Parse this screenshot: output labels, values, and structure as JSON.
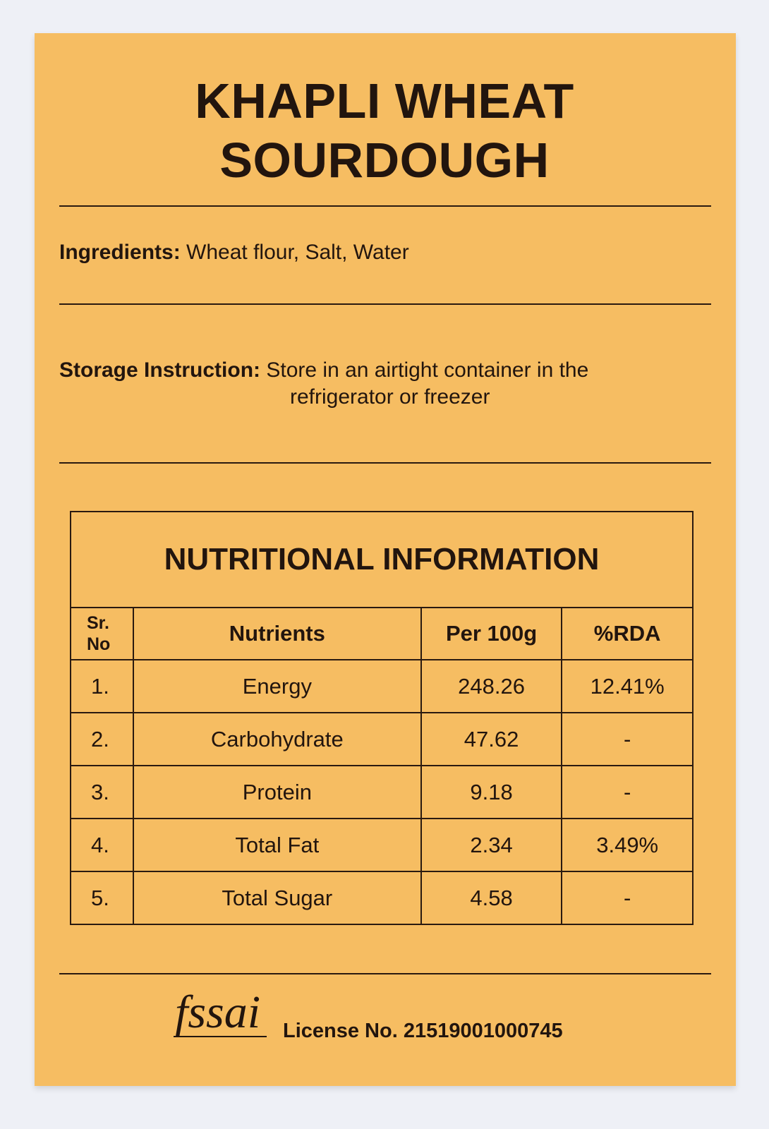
{
  "title": {
    "line1": "KHAPLI WHEAT",
    "line2": "SOURDOUGH"
  },
  "ingredients": {
    "label": "Ingredients:",
    "value": "Wheat flour, Salt, Water"
  },
  "storage": {
    "label": "Storage Instruction:",
    "line1": "Store in an airtight container in the",
    "line2": "refrigerator or freezer"
  },
  "nutrition": {
    "title": "NUTRITIONAL INFORMATION",
    "headers": {
      "sr": "Sr.",
      "no": "No",
      "nutrients": "Nutrients",
      "per100g": "Per 100g",
      "rda": "%RDA"
    },
    "rows": [
      {
        "sr": "1.",
        "name": "Energy",
        "per100g": "248.26",
        "rda": "12.41%"
      },
      {
        "sr": "2.",
        "name": "Carbohydrate",
        "per100g": "47.62",
        "rda": "-"
      },
      {
        "sr": "3.",
        "name": "Protein",
        "per100g": "9.18",
        "rda": "-"
      },
      {
        "sr": "4.",
        "name": "Total Fat",
        "per100g": "2.34",
        "rda": "3.49%"
      },
      {
        "sr": "5.",
        "name": "Total Sugar",
        "per100g": "4.58",
        "rda": "-"
      }
    ]
  },
  "footer": {
    "logo": "fssai",
    "license": "License No. 21519001000745"
  },
  "colors": {
    "card": "#f6bd62",
    "text": "#22150e",
    "background": "#eef0f6"
  }
}
